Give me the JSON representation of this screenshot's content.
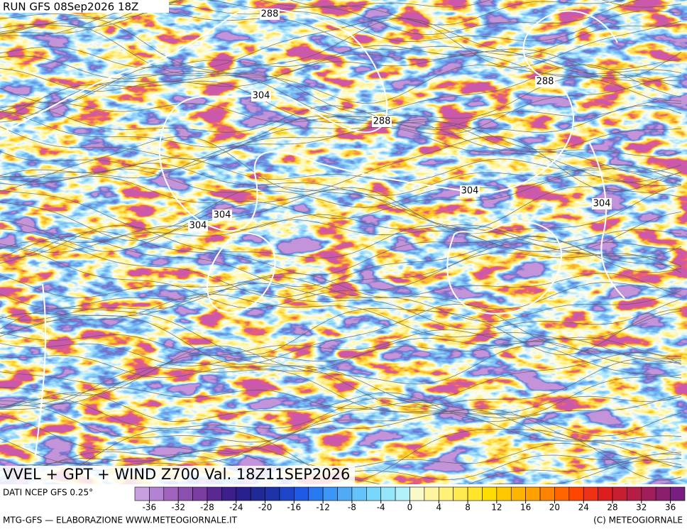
{
  "header": {
    "run_label": "RUN GFS 08Sep2026 18Z"
  },
  "product_label": "VVEL + GPT + WIND Z700 Val. 18Z11SEP2026",
  "contour_labels": [
    "288",
    "304",
    "288",
    "288",
    "304",
    "304",
    "304",
    "304"
  ],
  "legend": {
    "source": "DATI NCEP GFS 0.25°",
    "range": [
      -38,
      38
    ],
    "ticks": [
      -36,
      -32,
      -28,
      -24,
      -20,
      -16,
      -12,
      -8,
      -4,
      0,
      4,
      8,
      12,
      16,
      20,
      24,
      28,
      32,
      36
    ],
    "colors": [
      "#c8a0e0",
      "#b482d2",
      "#a064c0",
      "#8c50b0",
      "#7a3ca0",
      "#5a2890",
      "#3c1e8c",
      "#28208c",
      "#1e2896",
      "#1e32aa",
      "#1e46c8",
      "#1e5ae6",
      "#2878f0",
      "#3c96f5",
      "#50aaf5",
      "#64c3fa",
      "#78d7fa",
      "#96e6fa",
      "#b4f0fa",
      "#fafac8",
      "#fff5a0",
      "#fff078",
      "#ffeb50",
      "#ffe628",
      "#ffdc00",
      "#ffc800",
      "#ffb400",
      "#ffa000",
      "#ff8200",
      "#ff6400",
      "#ff4600",
      "#f03214",
      "#dc1e1e",
      "#c81e32",
      "#b41e46",
      "#a01e5a",
      "#8c1e6e",
      "#781e82"
    ]
  },
  "footer": {
    "credit": "MTG-GFS — ELABORAZIONE WWW.METEOGIORNALE.IT",
    "copyright": "(C) METEOGIORNALE"
  }
}
